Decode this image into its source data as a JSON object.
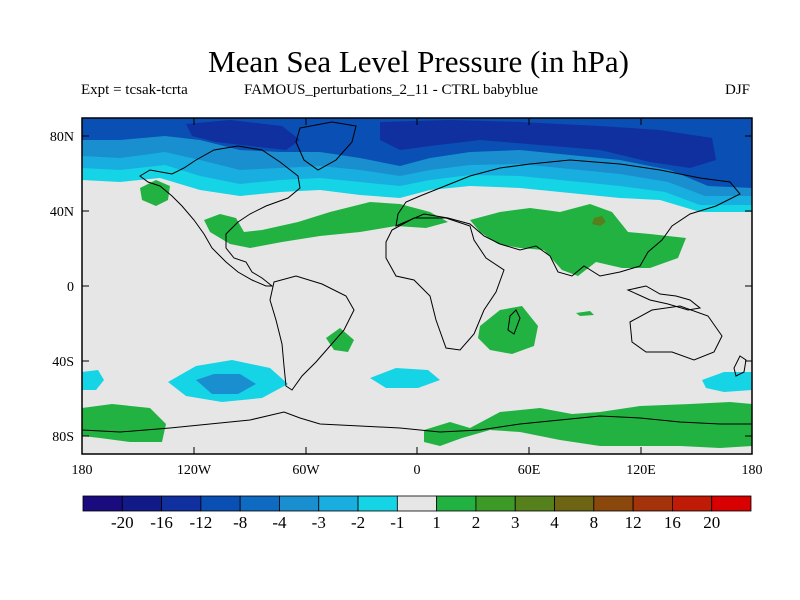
{
  "title": "Mean Sea Level Pressure (in hPa)",
  "subtitle_left": "Expt = tcsak-tcrta",
  "subtitle_center": "FAMOUS_perturbations_2_11 - CTRL babyblue",
  "season": "DJF",
  "lat_labels": [
    "80N",
    "40N",
    "0",
    "40S",
    "80S"
  ],
  "lon_labels": [
    "180",
    "120W",
    "60W",
    "0",
    "60E",
    "120E",
    "180"
  ],
  "colorbar": {
    "labels": [
      "-20",
      "-16",
      "-12",
      "-8",
      "-4",
      "-3",
      "-2",
      "-1",
      "1",
      "2",
      "3",
      "4",
      "8",
      "12",
      "16",
      "20"
    ],
    "colors": [
      "#1a0c7e",
      "#121a8a",
      "#1030a0",
      "#0a4fb3",
      "#0f6bc2",
      "#1a8fd0",
      "#18aee0",
      "#15d4e5",
      "#e6e6e6",
      "#22b242",
      "#3d9a27",
      "#56801c",
      "#6d6414",
      "#8a480d",
      "#a4320a",
      "#bf1b06",
      "#d80000"
    ]
  },
  "colors": {
    "neutral": "#e6e6e6",
    "light_cyan": "#15d4e5",
    "mid_blue": "#18aee0",
    "blue": "#1a8fd0",
    "dark_blue": "#0a4fb3",
    "deep_blue": "#1030a0",
    "green": "#22b242",
    "olive": "#56801c"
  }
}
